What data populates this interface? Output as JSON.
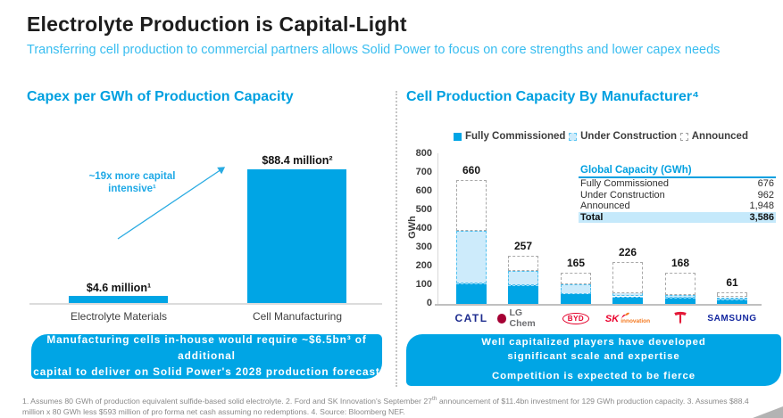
{
  "slide": {
    "title": "Electrolyte Production is Capital-Light",
    "subtitle": "Transferring cell production to commercial partners allows Solid Power to focus on core strengths and lower capex needs"
  },
  "left_section": {
    "title": "Capex per GWh of Production Capacity",
    "annotation": "~19x more capital intensive¹",
    "bar_labels": [
      "$4.6 million¹",
      "$88.4 million²"
    ],
    "categories": [
      "Electrolyte Materials",
      "Cell Manufacturing"
    ],
    "callout": {
      "line1": "Manufacturing cells in-house would require ~$6.5bn³ of additional",
      "line2": "capital to deliver on Solid Power's 2028 production forecast"
    }
  },
  "right_section": {
    "title": "Cell Production Capacity By Manufacturer⁴",
    "legend": [
      "Fully Commissioned",
      "Under Construction",
      "Announced"
    ],
    "ylabel": "GWh",
    "table": {
      "header": "Global Capacity (GWh)",
      "rows": [
        {
          "label": "Fully Commissioned",
          "value": "676"
        },
        {
          "label": "Under Construction",
          "value": "962"
        },
        {
          "label": "Announced",
          "value": "1,948"
        }
      ],
      "total": {
        "label": "Total",
        "value": "3,586"
      }
    },
    "logos": {
      "catl": "CATL",
      "lg_chem": "LG Chem",
      "byd": "BYD",
      "sk_main": "SK",
      "sk_sub": "innovation",
      "samsung": "SAMSUNG"
    },
    "callout": {
      "line1": "Well capitalized players have developed",
      "line2": "significant scale and expertise",
      "line3": "Competition is expected to be fierce"
    }
  },
  "footnote": {
    "part1": "1. Assumes 80 GWh of production equivalent sulfide-based solid electrolyte. 2. Ford and SK Innovation's September 27",
    "sup": "th",
    "part2": " announcement of $11.4bn investment for 129 GWh production capacity. 3. Assumes $88.4 million x 80 GWh less $593 million of pro forma net cash assuming no redemptions. 4. Source: Bloomberg NEF."
  },
  "colors": {
    "primary_blue": "#00a5e5",
    "title_blue": "#00a0e0",
    "subtitle_cyan": "#38bdf0",
    "light_blue_fill": "#cdebfb",
    "table_highlight": "#c5e9fb"
  },
  "chart_data": [
    {
      "type": "bar",
      "title": "Capex per GWh of Production Capacity",
      "categories": [
        "Electrolyte Materials",
        "Cell Manufacturing"
      ],
      "values": [
        4.6,
        88.4
      ],
      "value_unit": "$ million per GWh",
      "bar_labels": [
        "$4.6 million¹",
        "$88.4 million²"
      ],
      "annotation": "~19x more capital intensive¹",
      "ylim": [
        0,
        88.4
      ],
      "grid": false
    },
    {
      "type": "stacked-bar",
      "title": "Cell Production Capacity By Manufacturer⁴",
      "ylabel": "GWh",
      "ylim": [
        0,
        800
      ],
      "ytick_step": 100,
      "grid": false,
      "legend_position": "top",
      "categories": [
        "CATL",
        "LG Chem",
        "BYD",
        "SK Innovation",
        "Tesla",
        "Samsung"
      ],
      "series": [
        {
          "name": "Fully Commissioned",
          "values": [
            110,
            100,
            55,
            40,
            35,
            25
          ]
        },
        {
          "name": "Under Construction",
          "values": [
            280,
            75,
            50,
            20,
            15,
            10
          ]
        },
        {
          "name": "Announced",
          "values": [
            270,
            82,
            60,
            166,
            118,
            26
          ]
        }
      ],
      "totals": [
        660,
        257,
        165,
        226,
        168,
        61
      ]
    }
  ]
}
